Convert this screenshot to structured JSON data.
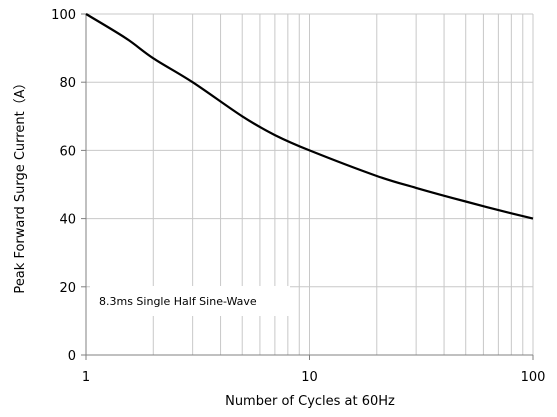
{
  "chart_data": {
    "type": "line",
    "xlabel": "Number of Cycles at 60Hz",
    "ylabel": "Peak Forward Surge Current（A）",
    "xscale": "log",
    "xlim": [
      1,
      100
    ],
    "ylim": [
      0,
      100
    ],
    "xticks": [
      1,
      10,
      100
    ],
    "xtick_labels": [
      "1",
      "10",
      "100"
    ],
    "yticks": [
      0,
      20,
      40,
      60,
      80,
      100
    ],
    "ytick_labels": [
      "0",
      "20",
      "40",
      "60",
      "80",
      "100"
    ],
    "grid": true,
    "annotation": "8.3ms Single Half Sine-Wave",
    "series": [
      {
        "x": [
          1,
          1.5,
          2,
          3,
          5,
          7,
          10,
          20,
          30,
          50,
          70,
          100
        ],
        "y": [
          100,
          93,
          87,
          80,
          70,
          64.5,
          60,
          52.5,
          49,
          45,
          42.5,
          40
        ]
      }
    ],
    "colors": {
      "line": "#000000",
      "grid": "#c8c8c8",
      "axis": "#808080"
    }
  }
}
